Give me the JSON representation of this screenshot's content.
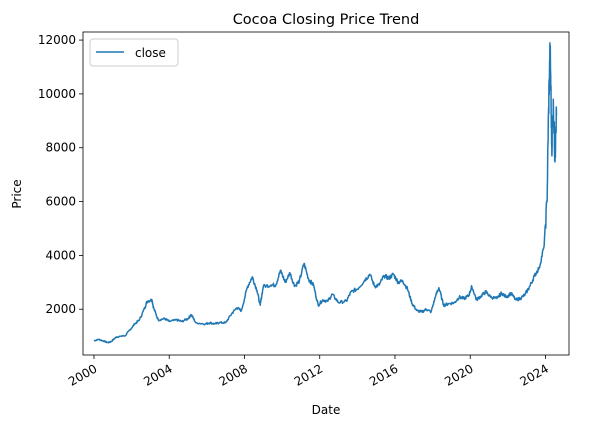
{
  "chart_data": {
    "type": "line",
    "title": "Cocoa Closing Price Trend",
    "xlabel": "Date",
    "ylabel": "Price",
    "xlim": [
      "1999-06",
      "2025-04"
    ],
    "ylim": [
      300,
      12300
    ],
    "x_ticks": [
      "2000",
      "2004",
      "2008",
      "2012",
      "2016",
      "2020",
      "2024"
    ],
    "y_ticks": [
      2000,
      4000,
      6000,
      8000,
      10000,
      12000
    ],
    "grid": false,
    "legend": {
      "position": "top-left",
      "entries": [
        "close"
      ]
    },
    "colors": {
      "close": "#1f77b4"
    },
    "series": [
      {
        "name": "close",
        "points": [
          [
            "2000-01",
            830
          ],
          [
            "2000-04",
            880
          ],
          [
            "2000-07",
            820
          ],
          [
            "2000-10",
            760
          ],
          [
            "2000-12",
            800
          ],
          [
            "2001-03",
            960
          ],
          [
            "2001-06",
            1000
          ],
          [
            "2001-09",
            1020
          ],
          [
            "2001-12",
            1240
          ],
          [
            "2002-03",
            1450
          ],
          [
            "2002-06",
            1600
          ],
          [
            "2002-09",
            2000
          ],
          [
            "2002-11",
            2300
          ],
          [
            "2003-02",
            2350
          ],
          [
            "2003-03",
            2050
          ],
          [
            "2003-06",
            1600
          ],
          [
            "2003-10",
            1650
          ],
          [
            "2004-01",
            1550
          ],
          [
            "2004-06",
            1600
          ],
          [
            "2004-09",
            1550
          ],
          [
            "2005-01",
            1650
          ],
          [
            "2005-03",
            1800
          ],
          [
            "2005-06",
            1500
          ],
          [
            "2005-12",
            1450
          ],
          [
            "2006-03",
            1500
          ],
          [
            "2006-06",
            1450
          ],
          [
            "2006-09",
            1500
          ],
          [
            "2007-01",
            1500
          ],
          [
            "2007-05",
            1850
          ],
          [
            "2007-08",
            2050
          ],
          [
            "2007-11",
            1950
          ],
          [
            "2008-03",
            2850
          ],
          [
            "2008-06",
            3200
          ],
          [
            "2008-09",
            2700
          ],
          [
            "2008-11",
            2150
          ],
          [
            "2009-01",
            2850
          ],
          [
            "2009-06",
            2900
          ],
          [
            "2009-09",
            2900
          ],
          [
            "2009-12",
            3450
          ],
          [
            "2010-03",
            3000
          ],
          [
            "2010-06",
            3350
          ],
          [
            "2010-09",
            2850
          ],
          [
            "2010-12",
            3050
          ],
          [
            "2011-03",
            3700
          ],
          [
            "2011-06",
            3100
          ],
          [
            "2011-09",
            2900
          ],
          [
            "2011-12",
            2150
          ],
          [
            "2012-03",
            2350
          ],
          [
            "2012-06",
            2300
          ],
          [
            "2012-09",
            2550
          ],
          [
            "2013-01",
            2250
          ],
          [
            "2013-06",
            2300
          ],
          [
            "2013-09",
            2650
          ],
          [
            "2014-01",
            2750
          ],
          [
            "2014-06",
            3100
          ],
          [
            "2014-09",
            3300
          ],
          [
            "2014-12",
            2850
          ],
          [
            "2015-03",
            2900
          ],
          [
            "2015-06",
            3250
          ],
          [
            "2015-09",
            3150
          ],
          [
            "2015-12",
            3300
          ],
          [
            "2016-03",
            3000
          ],
          [
            "2016-06",
            3050
          ],
          [
            "2016-09",
            2750
          ],
          [
            "2016-12",
            2200
          ],
          [
            "2017-03",
            1950
          ],
          [
            "2017-06",
            1900
          ],
          [
            "2017-09",
            2000
          ],
          [
            "2017-12",
            1900
          ],
          [
            "2018-03",
            2500
          ],
          [
            "2018-05",
            2800
          ],
          [
            "2018-08",
            2150
          ],
          [
            "2018-11",
            2200
          ],
          [
            "2019-03",
            2250
          ],
          [
            "2019-06",
            2450
          ],
          [
            "2019-09",
            2400
          ],
          [
            "2019-12",
            2500
          ],
          [
            "2020-02",
            2850
          ],
          [
            "2020-05",
            2350
          ],
          [
            "2020-08",
            2500
          ],
          [
            "2020-11",
            2650
          ],
          [
            "2021-02",
            2450
          ],
          [
            "2021-06",
            2400
          ],
          [
            "2021-09",
            2600
          ],
          [
            "2021-12",
            2450
          ],
          [
            "2022-03",
            2600
          ],
          [
            "2022-06",
            2350
          ],
          [
            "2022-09",
            2400
          ],
          [
            "2022-12",
            2550
          ],
          [
            "2023-03",
            2850
          ],
          [
            "2023-06",
            3250
          ],
          [
            "2023-09",
            3550
          ],
          [
            "2023-12",
            4300
          ],
          [
            "2024-02",
            6000
          ],
          [
            "2024-03",
            9500
          ],
          [
            "2024-04",
            11800
          ],
          [
            "2024-05",
            8000
          ],
          [
            "2024-06",
            9800
          ],
          [
            "2024-07",
            7600
          ],
          [
            "2024-08",
            9200
          ]
        ]
      }
    ]
  }
}
